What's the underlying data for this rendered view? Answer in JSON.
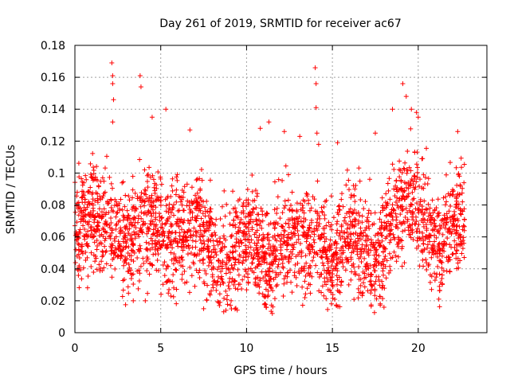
{
  "chart_data": {
    "type": "scatter",
    "title": "Day 261 of 2019, SRMTID for receiver ac67",
    "xlabel": "GPS time / hours",
    "ylabel": "SRMTID / TECUs",
    "xlim": [
      0,
      24
    ],
    "ylim": [
      0,
      0.18
    ],
    "xticks": [
      0,
      5,
      10,
      15,
      20
    ],
    "xtick_labels": [
      "0",
      "5",
      "10",
      "15",
      "20"
    ],
    "yticks": [
      0,
      0.02,
      0.04,
      0.06,
      0.08,
      0.1,
      0.12,
      0.14,
      0.16,
      0.18
    ],
    "ytick_labels": [
      "0",
      "0.02",
      "0.04",
      "0.06",
      "0.08",
      "0.1",
      "0.12",
      "0.14",
      "0.16",
      "0.18"
    ],
    "grid": true,
    "marker": "+",
    "color": "#ff0000",
    "series": [
      {
        "name": "SRMTID",
        "x_range": [
          0,
          22.7
        ],
        "point_count": 2700,
        "mean_profile": [
          [
            0.0,
            0.065
          ],
          [
            0.5,
            0.07
          ],
          [
            1.0,
            0.072
          ],
          [
            1.5,
            0.07
          ],
          [
            2.0,
            0.068
          ],
          [
            2.5,
            0.062
          ],
          [
            3.0,
            0.056
          ],
          [
            3.5,
            0.062
          ],
          [
            4.0,
            0.07
          ],
          [
            4.5,
            0.068
          ],
          [
            5.0,
            0.066
          ],
          [
            5.5,
            0.06
          ],
          [
            6.0,
            0.058
          ],
          [
            6.5,
            0.065
          ],
          [
            7.0,
            0.07
          ],
          [
            7.5,
            0.062
          ],
          [
            8.0,
            0.052
          ],
          [
            8.5,
            0.042
          ],
          [
            9.0,
            0.045
          ],
          [
            9.5,
            0.055
          ],
          [
            10.0,
            0.062
          ],
          [
            10.5,
            0.058
          ],
          [
            11.0,
            0.045
          ],
          [
            11.5,
            0.048
          ],
          [
            12.0,
            0.058
          ],
          [
            12.5,
            0.06
          ],
          [
            13.0,
            0.055
          ],
          [
            13.5,
            0.058
          ],
          [
            14.0,
            0.062
          ],
          [
            14.5,
            0.05
          ],
          [
            15.0,
            0.045
          ],
          [
            15.5,
            0.055
          ],
          [
            16.0,
            0.065
          ],
          [
            16.5,
            0.058
          ],
          [
            17.0,
            0.05
          ],
          [
            17.5,
            0.045
          ],
          [
            18.0,
            0.055
          ],
          [
            18.5,
            0.072
          ],
          [
            19.0,
            0.078
          ],
          [
            19.5,
            0.082
          ],
          [
            20.0,
            0.085
          ],
          [
            20.5,
            0.065
          ],
          [
            21.0,
            0.052
          ],
          [
            21.5,
            0.058
          ],
          [
            22.0,
            0.075
          ],
          [
            22.7,
            0.07
          ]
        ],
        "spread": 0.022,
        "outliers": [
          [
            2.15,
            0.169
          ],
          [
            2.2,
            0.161
          ],
          [
            2.2,
            0.156
          ],
          [
            2.25,
            0.146
          ],
          [
            2.2,
            0.132
          ],
          [
            3.8,
            0.161
          ],
          [
            3.85,
            0.154
          ],
          [
            4.5,
            0.135
          ],
          [
            5.3,
            0.14
          ],
          [
            3.4,
            0.02
          ],
          [
            4.1,
            0.02
          ],
          [
            6.7,
            0.127
          ],
          [
            9.1,
            0.02
          ],
          [
            10.8,
            0.128
          ],
          [
            11.3,
            0.132
          ],
          [
            12.2,
            0.126
          ],
          [
            13.1,
            0.123
          ],
          [
            14.0,
            0.166
          ],
          [
            14.05,
            0.156
          ],
          [
            14.05,
            0.141
          ],
          [
            14.1,
            0.125
          ],
          [
            14.2,
            0.118
          ],
          [
            15.3,
            0.119
          ],
          [
            17.5,
            0.125
          ],
          [
            18.5,
            0.14
          ],
          [
            19.1,
            0.156
          ],
          [
            19.3,
            0.148
          ],
          [
            19.6,
            0.14
          ],
          [
            19.9,
            0.138
          ],
          [
            20.0,
            0.135
          ],
          [
            21.2,
            0.021
          ],
          [
            22.3,
            0.126
          ],
          [
            11.5,
            0.012
          ],
          [
            8.8,
            0.014
          ],
          [
            7.5,
            0.015
          ]
        ]
      }
    ]
  }
}
